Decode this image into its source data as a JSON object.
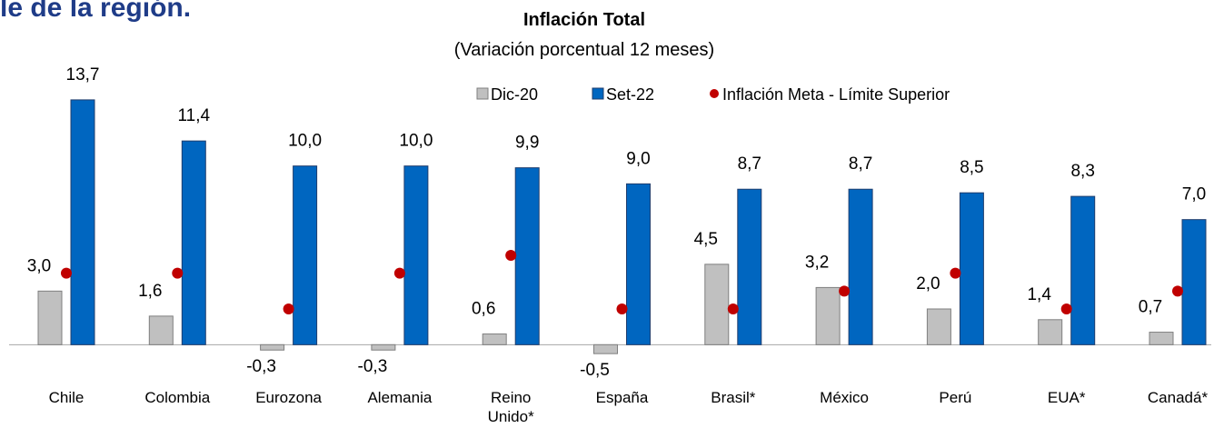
{
  "heading": "le de la región.",
  "chart_data": {
    "type": "bar",
    "title": "Inflación Total",
    "subtitle": "(Variación porcentual 12 meses)",
    "categories": [
      "Chile",
      "Colombia",
      "Eurozona",
      "Alemania",
      "Reino\nUnido*",
      "España",
      "Brasil*",
      "México",
      "Perú",
      "EUA*",
      "Canadá*"
    ],
    "series": [
      {
        "name": "Dic-20",
        "color": "#c0c0c0",
        "values": [
          3.0,
          1.6,
          -0.3,
          -0.3,
          0.6,
          -0.5,
          4.5,
          3.2,
          2.0,
          1.4,
          0.7
        ],
        "value_labels": [
          "3,0",
          "1,6",
          "-0,3",
          "-0,3",
          "0,6",
          "-0,5",
          "4,5",
          "3,2",
          "2,0",
          "1,4",
          "0,7"
        ]
      },
      {
        "name": "Set-22",
        "color": "#0066c0",
        "values": [
          13.7,
          11.4,
          10.0,
          10.0,
          9.9,
          9.0,
          8.7,
          8.7,
          8.5,
          8.3,
          7.0
        ],
        "value_labels": [
          "13,7",
          "11,4",
          "10,0",
          "10,0",
          "9,9",
          "9,0",
          "8,7",
          "8,7",
          "8,5",
          "8,3",
          "7,0"
        ]
      },
      {
        "name": "Inflación Meta - Límite Superior",
        "type": "scatter",
        "color": "#c00000",
        "values": [
          4.0,
          4.0,
          2.0,
          4.0,
          5.0,
          2.0,
          2.0,
          3.0,
          4.0,
          2.0,
          3.0
        ]
      }
    ],
    "ylim": [
      -1,
      14
    ]
  }
}
